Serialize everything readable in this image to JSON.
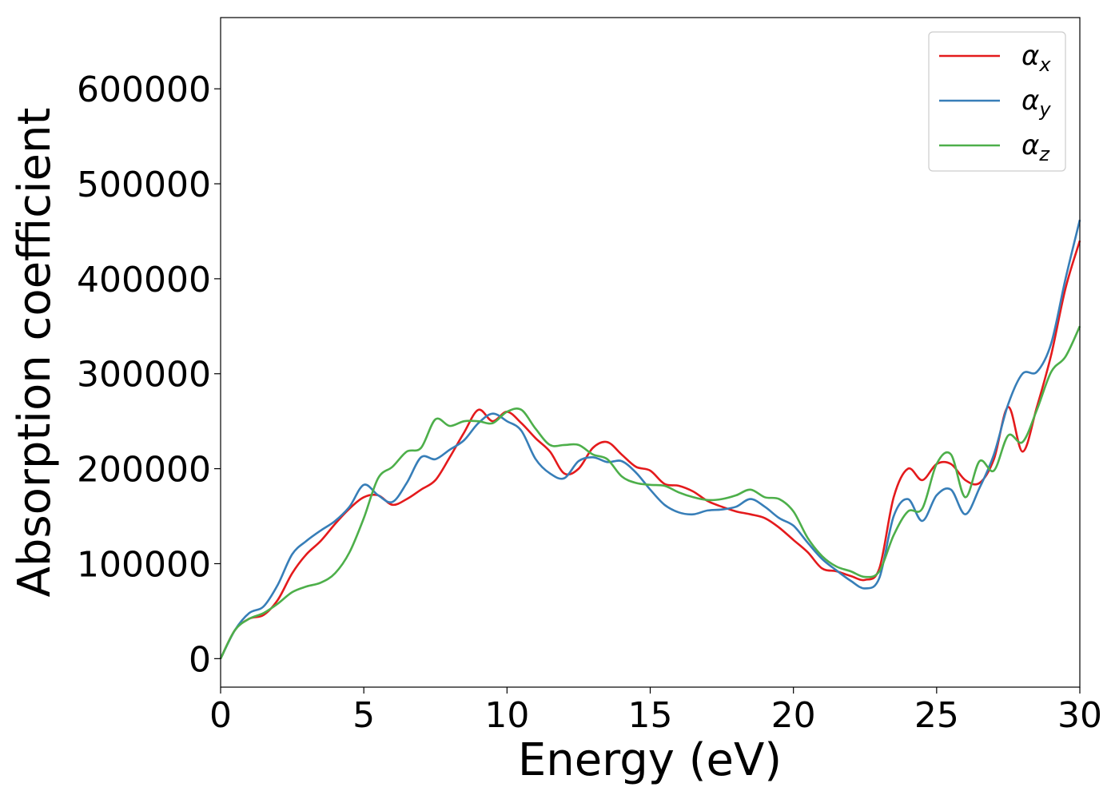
{
  "chart_data": {
    "type": "line",
    "xlabel": "Energy (eV)",
    "ylabel": "Absorption coefficient",
    "xlim": [
      0,
      30
    ],
    "ylim": [
      -30000,
      675000
    ],
    "xticks": [
      0,
      5,
      10,
      15,
      20,
      25,
      30
    ],
    "yticks": [
      0,
      100000,
      200000,
      300000,
      400000,
      500000,
      600000
    ],
    "xtick_labels": [
      "0",
      "5",
      "10",
      "15",
      "20",
      "25",
      "30"
    ],
    "ytick_labels": [
      "0",
      "100000",
      "200000",
      "300000",
      "400000",
      "500000",
      "600000"
    ],
    "grid": false,
    "legend_placement": "top-right",
    "series": [
      {
        "name": "α_x",
        "label_main": "α",
        "label_sub": "x",
        "color": "#e41a1c",
        "points": [
          [
            0,
            0
          ],
          [
            0.5,
            30000
          ],
          [
            1,
            42000
          ],
          [
            1.5,
            46000
          ],
          [
            2,
            62000
          ],
          [
            2.5,
            90000
          ],
          [
            3,
            110000
          ],
          [
            3.5,
            124000
          ],
          [
            4,
            142000
          ],
          [
            4.5,
            158000
          ],
          [
            5,
            170000
          ],
          [
            5.5,
            172000
          ],
          [
            6,
            162000
          ],
          [
            6.5,
            168000
          ],
          [
            7,
            178000
          ],
          [
            7.5,
            188000
          ],
          [
            8,
            212000
          ],
          [
            8.5,
            238000
          ],
          [
            9,
            262000
          ],
          [
            9.5,
            250000
          ],
          [
            10,
            260000
          ],
          [
            10.5,
            248000
          ],
          [
            11,
            232000
          ],
          [
            11.5,
            218000
          ],
          [
            12,
            195000
          ],
          [
            12.5,
            200000
          ],
          [
            13,
            222000
          ],
          [
            13.5,
            228000
          ],
          [
            14,
            215000
          ],
          [
            14.5,
            202000
          ],
          [
            15,
            198000
          ],
          [
            15.5,
            184000
          ],
          [
            16,
            182000
          ],
          [
            16.5,
            176000
          ],
          [
            17,
            166000
          ],
          [
            17.5,
            160000
          ],
          [
            18,
            155000
          ],
          [
            18.5,
            152000
          ],
          [
            19,
            148000
          ],
          [
            19.5,
            138000
          ],
          [
            20,
            125000
          ],
          [
            20.5,
            112000
          ],
          [
            21,
            95000
          ],
          [
            21.5,
            92000
          ],
          [
            22,
            87000
          ],
          [
            22.5,
            83000
          ],
          [
            23,
            95000
          ],
          [
            23.5,
            170000
          ],
          [
            24,
            200000
          ],
          [
            24.5,
            188000
          ],
          [
            25,
            205000
          ],
          [
            25.5,
            205000
          ],
          [
            26,
            188000
          ],
          [
            26.5,
            185000
          ],
          [
            27,
            210000
          ],
          [
            27.5,
            265000
          ],
          [
            28,
            218000
          ],
          [
            28.5,
            265000
          ],
          [
            29,
            320000
          ],
          [
            29.5,
            390000
          ],
          [
            30,
            440000
          ]
        ]
      },
      {
        "name": "α_y",
        "label_main": "α",
        "label_sub": "y",
        "color": "#377eb8",
        "points": [
          [
            0,
            0
          ],
          [
            0.5,
            30000
          ],
          [
            1,
            48000
          ],
          [
            1.5,
            55000
          ],
          [
            2,
            78000
          ],
          [
            2.5,
            110000
          ],
          [
            3,
            124000
          ],
          [
            3.5,
            135000
          ],
          [
            4,
            145000
          ],
          [
            4.5,
            160000
          ],
          [
            5,
            183000
          ],
          [
            5.5,
            172000
          ],
          [
            6,
            165000
          ],
          [
            6.5,
            185000
          ],
          [
            7,
            212000
          ],
          [
            7.5,
            210000
          ],
          [
            8,
            220000
          ],
          [
            8.5,
            230000
          ],
          [
            9,
            248000
          ],
          [
            9.5,
            258000
          ],
          [
            10,
            250000
          ],
          [
            10.5,
            240000
          ],
          [
            11,
            210000
          ],
          [
            11.5,
            195000
          ],
          [
            12,
            190000
          ],
          [
            12.5,
            208000
          ],
          [
            13,
            212000
          ],
          [
            13.5,
            207000
          ],
          [
            14,
            208000
          ],
          [
            14.5,
            196000
          ],
          [
            15,
            178000
          ],
          [
            15.5,
            162000
          ],
          [
            16,
            154000
          ],
          [
            16.5,
            152000
          ],
          [
            17,
            156000
          ],
          [
            17.5,
            157000
          ],
          [
            18,
            160000
          ],
          [
            18.5,
            168000
          ],
          [
            19,
            160000
          ],
          [
            19.5,
            148000
          ],
          [
            20,
            140000
          ],
          [
            20.5,
            122000
          ],
          [
            21,
            105000
          ],
          [
            21.5,
            93000
          ],
          [
            22,
            82000
          ],
          [
            22.5,
            74000
          ],
          [
            23,
            85000
          ],
          [
            23.5,
            150000
          ],
          [
            24,
            168000
          ],
          [
            24.5,
            145000
          ],
          [
            25,
            172000
          ],
          [
            25.5,
            178000
          ],
          [
            26,
            152000
          ],
          [
            26.5,
            180000
          ],
          [
            27,
            215000
          ],
          [
            27.5,
            268000
          ],
          [
            28,
            300000
          ],
          [
            28.5,
            302000
          ],
          [
            29,
            332000
          ],
          [
            29.5,
            400000
          ],
          [
            30,
            462000
          ]
        ]
      },
      {
        "name": "α_z",
        "label_main": "α",
        "label_sub": "z",
        "color": "#4daf4a",
        "points": [
          [
            0,
            0
          ],
          [
            0.5,
            30000
          ],
          [
            1,
            42000
          ],
          [
            1.5,
            48000
          ],
          [
            2,
            58000
          ],
          [
            2.5,
            70000
          ],
          [
            3,
            76000
          ],
          [
            3.5,
            80000
          ],
          [
            4,
            90000
          ],
          [
            4.5,
            112000
          ],
          [
            5,
            148000
          ],
          [
            5.5,
            190000
          ],
          [
            6,
            202000
          ],
          [
            6.5,
            218000
          ],
          [
            7,
            222000
          ],
          [
            7.5,
            252000
          ],
          [
            8,
            245000
          ],
          [
            8.5,
            250000
          ],
          [
            9,
            250000
          ],
          [
            9.5,
            248000
          ],
          [
            10,
            260000
          ],
          [
            10.5,
            262000
          ],
          [
            11,
            242000
          ],
          [
            11.5,
            225000
          ],
          [
            12,
            225000
          ],
          [
            12.5,
            225000
          ],
          [
            13,
            215000
          ],
          [
            13.5,
            210000
          ],
          [
            14,
            192000
          ],
          [
            14.5,
            185000
          ],
          [
            15,
            183000
          ],
          [
            15.5,
            182000
          ],
          [
            16,
            175000
          ],
          [
            16.5,
            170000
          ],
          [
            17,
            167000
          ],
          [
            17.5,
            168000
          ],
          [
            18,
            172000
          ],
          [
            18.5,
            178000
          ],
          [
            19,
            170000
          ],
          [
            19.5,
            168000
          ],
          [
            20,
            155000
          ],
          [
            20.5,
            127000
          ],
          [
            21,
            108000
          ],
          [
            21.5,
            97000
          ],
          [
            22,
            92000
          ],
          [
            22.5,
            86000
          ],
          [
            23,
            92000
          ],
          [
            23.5,
            130000
          ],
          [
            24,
            155000
          ],
          [
            24.5,
            158000
          ],
          [
            25,
            205000
          ],
          [
            25.5,
            215000
          ],
          [
            26,
            170000
          ],
          [
            26.5,
            208000
          ],
          [
            27,
            198000
          ],
          [
            27.5,
            235000
          ],
          [
            28,
            228000
          ],
          [
            28.5,
            262000
          ],
          [
            29,
            302000
          ],
          [
            29.5,
            318000
          ],
          [
            30,
            350000
          ]
        ]
      }
    ]
  }
}
